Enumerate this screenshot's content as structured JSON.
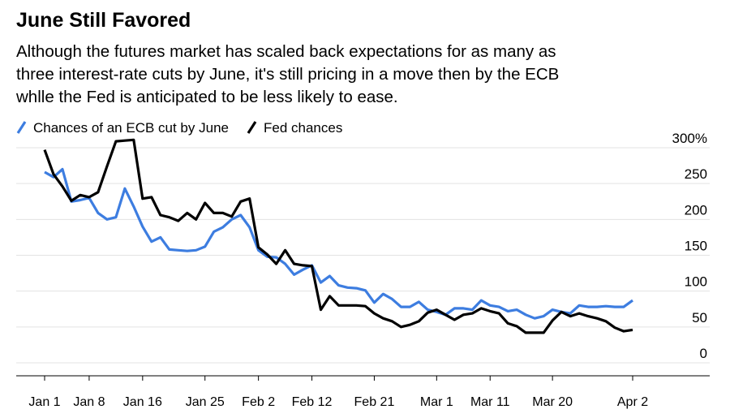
{
  "chart_data": {
    "type": "line",
    "title": "June Still Favored",
    "subtitle": [
      "Although the futures market has scaled back expectations for as many as",
      "three interest-rate cuts by June, it's still pricing in a move then by the ECB",
      "whlle the Fed is anticipated to be less likely to ease."
    ],
    "categories": [
      "Jan 1",
      null,
      null,
      null,
      null,
      "Jan 8",
      null,
      null,
      null,
      null,
      null,
      "Jan 16",
      null,
      null,
      null,
      null,
      null,
      null,
      "Jan 25",
      null,
      null,
      null,
      null,
      null,
      "Feb 2",
      null,
      null,
      null,
      null,
      null,
      "Feb 12",
      null,
      null,
      null,
      null,
      null,
      null,
      "Feb 21",
      null,
      null,
      null,
      null,
      null,
      null,
      "Mar 1",
      null,
      null,
      null,
      null,
      null,
      "Mar 11",
      null,
      null,
      null,
      null,
      null,
      null,
      "Mar 20",
      null,
      null,
      null,
      null,
      null,
      null,
      null,
      null,
      "Apr 2"
    ],
    "series": [
      {
        "name": "Chances of an ECB cut by June",
        "color": "#3d7de0",
        "values": [
          266,
          259,
          270,
          225,
          227,
          230,
          209,
          200,
          203,
          243,
          218,
          190,
          169,
          175,
          158,
          157,
          156,
          157,
          162,
          183,
          189,
          200,
          206,
          189,
          157,
          148,
          147,
          138,
          123,
          130,
          136,
          112,
          121,
          108,
          105,
          104,
          101,
          84,
          96,
          89,
          78,
          78,
          85,
          74,
          71,
          67,
          76,
          76,
          74,
          87,
          80,
          78,
          72,
          74,
          67,
          62,
          65,
          74,
          71,
          69,
          80,
          78,
          78,
          79,
          78,
          78,
          87
        ]
      },
      {
        "name": "Fed chances",
        "color": "#000000",
        "values": [
          297,
          263,
          246,
          226,
          234,
          231,
          238,
          274,
          309,
          310,
          311,
          229,
          231,
          206,
          203,
          198,
          209,
          200,
          223,
          209,
          209,
          204,
          225,
          229,
          161,
          151,
          138,
          157,
          138,
          136,
          135,
          74,
          93,
          80,
          80,
          80,
          79,
          69,
          62,
          58,
          50,
          53,
          58,
          70,
          74,
          67,
          60,
          67,
          69,
          76,
          72,
          69,
          55,
          51,
          42,
          42,
          42,
          59,
          71,
          65,
          69,
          65,
          62,
          58,
          49,
          44,
          46
        ]
      }
    ],
    "ylim": [
      0,
      300
    ],
    "yticks": [
      0,
      50,
      100,
      150,
      200,
      250,
      {
        "value": 300,
        "label": "300%"
      }
    ],
    "grid": true
  }
}
